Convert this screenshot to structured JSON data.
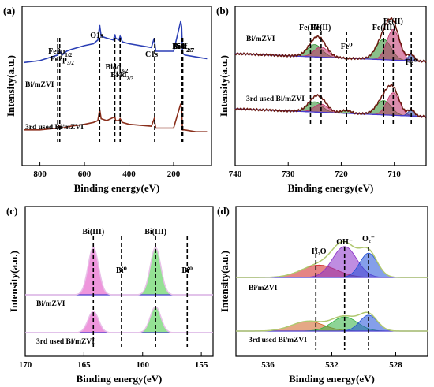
{
  "chart_data": [
    {
      "id": "a",
      "type": "line",
      "panel_label": "(a)",
      "xlabel": "Binding energy(eV)",
      "ylabel": "Intensity(a.u.)",
      "xlim": [
        880,
        30
      ],
      "x_reversed": true,
      "tick_labels": [
        "800",
        "600",
        "400",
        "200"
      ],
      "series": [
        {
          "name": "Bi/mZVI",
          "color": "#2b3fb5",
          "x": [
            870,
            800,
            720,
            711,
            700,
            690,
            680,
            660,
            600,
            560,
            540,
            532,
            525,
            500,
            470,
            464,
            460,
            445,
            440,
            430,
            400,
            300,
            287,
            280,
            250,
            200,
            168,
            164,
            160,
            150,
            100,
            50
          ],
          "y": [
            0.8,
            0.81,
            0.84,
            0.86,
            0.84,
            0.85,
            0.86,
            0.87,
            0.89,
            0.9,
            0.92,
            1.0,
            0.94,
            0.93,
            0.92,
            0.95,
            0.93,
            0.92,
            0.94,
            0.91,
            0.9,
            0.88,
            0.93,
            0.86,
            0.86,
            0.86,
            1.02,
            0.99,
            0.85,
            0.84,
            0.83,
            0.82
          ]
        },
        {
          "name": "3rd used Bi/mZVI",
          "color": "#8a2f1c",
          "x": [
            870,
            800,
            720,
            711,
            700,
            660,
            600,
            560,
            540,
            532,
            525,
            500,
            464,
            460,
            445,
            440,
            430,
            400,
            300,
            287,
            280,
            200,
            168,
            164,
            160,
            150,
            100,
            50
          ],
          "y": [
            0.44,
            0.44,
            0.45,
            0.46,
            0.45,
            0.46,
            0.47,
            0.48,
            0.49,
            0.55,
            0.5,
            0.49,
            0.51,
            0.49,
            0.49,
            0.5,
            0.48,
            0.47,
            0.46,
            0.5,
            0.45,
            0.45,
            0.58,
            0.55,
            0.44,
            0.44,
            0.43,
            0.43
          ]
        }
      ],
      "annotations": [
        {
          "text": "Fe2p",
          "sub": "1/2",
          "x": 720
        },
        {
          "text": "Fe2p",
          "sub": "3/2",
          "x": 711
        },
        {
          "text": "O1s",
          "sub": "",
          "x": 532
        },
        {
          "text": "Bi4d",
          "sub": "3/2",
          "x": 464
        },
        {
          "text": "Bi4d",
          "sub": "2/3",
          "x": 440
        },
        {
          "text": "C1s",
          "sub": "",
          "x": 285
        },
        {
          "text": "Bi4f",
          "sub": "2/5",
          "x": 164
        },
        {
          "text": "Bi4f",
          "sub": "2/7",
          "x": 159
        }
      ],
      "dashed_lines": [
        720,
        711,
        532,
        464,
        440,
        285,
        164,
        159
      ],
      "series_labels": [
        "Bi/mZVI",
        "3rd used Bi/mZVI"
      ]
    },
    {
      "id": "b",
      "type": "line",
      "panel_label": "(b)",
      "xlabel": "Binding energy(eV)",
      "ylabel": "Intensity(a.u.)",
      "xlim": [
        740,
        704
      ],
      "x_reversed": true,
      "tick_labels": [
        "740",
        "730",
        "720",
        "710"
      ],
      "peaks_top": [
        {
          "center": 725.0,
          "height": 0.12,
          "width": 1.4,
          "color": "#2a8a2a"
        },
        {
          "center": 723.8,
          "height": 0.1,
          "width": 1.3,
          "color": "#c0306a"
        },
        {
          "center": 712.0,
          "height": 0.2,
          "width": 1.4,
          "color": "#2a8a2a"
        },
        {
          "center": 710.2,
          "height": 0.3,
          "width": 1.2,
          "color": "#c0306a"
        },
        {
          "center": 706.8,
          "height": 0.06,
          "width": 0.6,
          "color": "#1e3fa0"
        }
      ],
      "peaks_bottom": [
        {
          "center": 725.0,
          "height": 0.1,
          "width": 1.4,
          "color": "#2a8a2a"
        },
        {
          "center": 723.8,
          "height": 0.08,
          "width": 1.3,
          "color": "#c0306a"
        },
        {
          "center": 719.0,
          "height": 0.03,
          "width": 0.9,
          "color": "#2a8a2a"
        },
        {
          "center": 712.0,
          "height": 0.14,
          "width": 1.4,
          "color": "#2a8a2a"
        },
        {
          "center": 710.2,
          "height": 0.22,
          "width": 1.2,
          "color": "#c0306a"
        },
        {
          "center": 706.8,
          "height": 0.06,
          "width": 0.6,
          "color": "#1e3fa0"
        }
      ],
      "annotations": [
        {
          "text": "Fe(III)",
          "x": 725.8
        },
        {
          "text": "Fe(II)",
          "x": 723.8
        },
        {
          "text": "Fe⁰",
          "x": 719.0
        },
        {
          "text": "Fe(III)",
          "x": 712.0
        },
        {
          "text": "Fe(II)",
          "x": 710.2
        },
        {
          "text": "Fe⁰",
          "x": 706.8
        }
      ],
      "dashed_lines": [
        725.8,
        723.8,
        719.0,
        712.0,
        710.2,
        706.8
      ],
      "series_labels": [
        "Bi/mZVI",
        "3rd used Bi/mZVI"
      ]
    },
    {
      "id": "c",
      "type": "line",
      "panel_label": "(c)",
      "xlabel": "Binding energy(eV)",
      "ylabel": "Intensity(a.u.)",
      "xlim": [
        170,
        154
      ],
      "x_reversed": true,
      "tick_labels": [
        "170",
        "165",
        "160",
        "155"
      ],
      "peaks_top": [
        {
          "center": 164.2,
          "height": 1.0,
          "width": 0.45,
          "color": "#e040c0"
        },
        {
          "center": 158.9,
          "height": 1.0,
          "width": 0.45,
          "color": "#3cc83c"
        }
      ],
      "peaks_bottom": [
        {
          "center": 164.2,
          "height": 0.45,
          "width": 0.45,
          "color": "#e040c0"
        },
        {
          "center": 158.9,
          "height": 0.55,
          "width": 0.45,
          "color": "#3cc83c"
        }
      ],
      "annotations": [
        {
          "text": "Bi(III)",
          "x": 164.2
        },
        {
          "text": "Bi⁰",
          "x": 161.8
        },
        {
          "text": "Bi(III)",
          "x": 158.9
        },
        {
          "text": "Bi⁰",
          "x": 156.2
        }
      ],
      "dashed_lines": [
        164.2,
        161.8,
        158.9,
        156.2
      ],
      "series_labels": [
        "Bi/mZVI",
        "3rd used Bi/mZVI"
      ]
    },
    {
      "id": "d",
      "type": "line",
      "panel_label": "(d)",
      "xlabel": "Binding energy(eV)",
      "ylabel": "Intensity(a.u.)",
      "xlim": [
        538,
        526
      ],
      "x_reversed": true,
      "tick_labels": [
        "536",
        "532",
        "528"
      ],
      "peaks_top": [
        {
          "center": 532.8,
          "height": 0.28,
          "width": 1.1,
          "color": "#d02020"
        },
        {
          "center": 531.2,
          "height": 0.7,
          "width": 0.75,
          "color": "#8a30c8"
        },
        {
          "center": 529.7,
          "height": 0.55,
          "width": 0.55,
          "color": "#2050d8"
        }
      ],
      "peaks_bottom": [
        {
          "center": 533.5,
          "height": 0.22,
          "width": 1.0,
          "color": "#d06020"
        },
        {
          "center": 531.2,
          "height": 0.32,
          "width": 0.8,
          "color": "#30b040"
        },
        {
          "center": 529.7,
          "height": 0.36,
          "width": 0.55,
          "color": "#2050d8"
        }
      ],
      "annotations": [
        {
          "text": "H₂O",
          "x": 532.8
        },
        {
          "text": "OH⁻",
          "x": 531.2
        },
        {
          "text": "O₂⁻",
          "x": 529.7
        }
      ],
      "dashed_lines": [
        533.0,
        531.2,
        529.7
      ],
      "series_labels": [
        "Bi/mZVI",
        "3rd used Bi/mZVI"
      ]
    }
  ]
}
